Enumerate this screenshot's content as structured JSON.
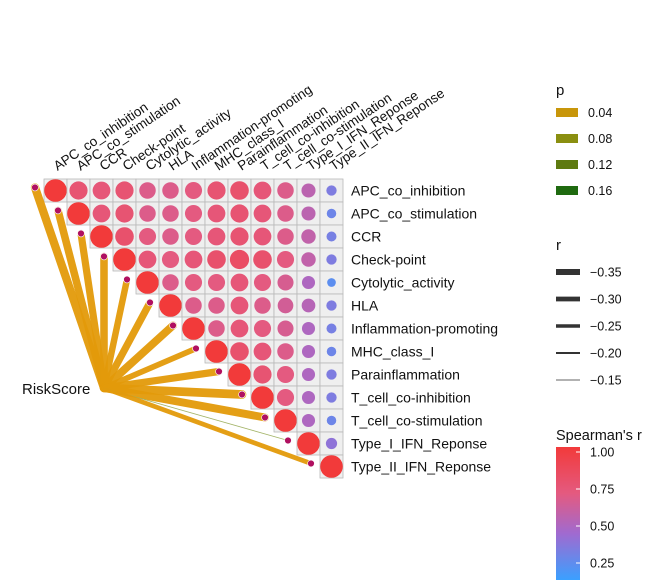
{
  "chart_data": {
    "type": "heatmap",
    "variables": [
      "APC_co_inhibition",
      "APC_co_stimulation",
      "CCR",
      "Check-point",
      "Cytolytic_activity",
      "HLA",
      "Inflammation-promoting",
      "MHC_class_I",
      "Parainflammation",
      "T_cell_co-inhibition",
      "T_cell_co-stimulation",
      "Type_I_IFN_Reponse",
      "Type_II_IFN_Reponse"
    ],
    "correlation_matrix_upper": [
      [
        1.0,
        0.8,
        0.78,
        0.8,
        0.72,
        0.72,
        0.75,
        0.8,
        0.82,
        0.78,
        0.72,
        0.6,
        0.4
      ],
      [
        1.0,
        0.78,
        0.8,
        0.72,
        0.72,
        0.75,
        0.78,
        0.8,
        0.78,
        0.72,
        0.6,
        0.35
      ],
      [
        1.0,
        0.82,
        0.75,
        0.72,
        0.75,
        0.78,
        0.8,
        0.78,
        0.72,
        0.62,
        0.38
      ],
      [
        1.0,
        0.78,
        0.75,
        0.78,
        0.82,
        0.85,
        0.82,
        0.75,
        0.62,
        0.4
      ],
      [
        1.0,
        0.72,
        0.75,
        0.75,
        0.78,
        0.75,
        0.7,
        0.55,
        0.3
      ],
      [
        1.0,
        0.72,
        0.72,
        0.78,
        0.72,
        0.68,
        0.58,
        0.4
      ],
      [
        1.0,
        0.72,
        0.78,
        0.75,
        0.7,
        0.55,
        0.38
      ],
      [
        1.0,
        0.82,
        0.78,
        0.72,
        0.55,
        0.35
      ],
      [
        1.0,
        0.8,
        0.75,
        0.55,
        0.4
      ],
      [
        1.0,
        0.75,
        0.55,
        0.4
      ],
      [
        1.0,
        0.55,
        0.35
      ],
      [
        1.0,
        0.45
      ],
      [
        1.0
      ]
    ],
    "risk_label": "RiskScore",
    "risk_links": [
      {
        "target": "APC_co_inhibition",
        "r": -0.35,
        "p": 0.01
      },
      {
        "target": "APC_co_stimulation",
        "r": -0.33,
        "p": 0.01
      },
      {
        "target": "CCR",
        "r": -0.32,
        "p": 0.01
      },
      {
        "target": "Check-point",
        "r": -0.33,
        "p": 0.01
      },
      {
        "target": "Cytolytic_activity",
        "r": -0.3,
        "p": 0.01
      },
      {
        "target": "HLA",
        "r": -0.32,
        "p": 0.01
      },
      {
        "target": "Inflammation-promoting",
        "r": -0.34,
        "p": 0.01
      },
      {
        "target": "MHC_class_I",
        "r": -0.28,
        "p": 0.01
      },
      {
        "target": "Parainflammation",
        "r": -0.32,
        "p": 0.01
      },
      {
        "target": "T_cell_co-inhibition",
        "r": -0.36,
        "p": 0.01
      },
      {
        "target": "T_cell_co-stimulation",
        "r": -0.34,
        "p": 0.01
      },
      {
        "target": "Type_I_IFN_Reponse",
        "r": -0.14,
        "p": 0.1
      },
      {
        "target": "Type_II_IFN_Reponse",
        "r": -0.25,
        "p": 0.01
      }
    ],
    "legend_p": {
      "title": "p",
      "values": [
        "0.04",
        "0.08",
        "0.12",
        "0.16"
      ],
      "colors": [
        "#c8960a",
        "#8a8f10",
        "#5e7a10",
        "#1f6a10"
      ]
    },
    "legend_r": {
      "title": "r",
      "values": [
        "−0.35",
        "−0.30",
        "−0.25",
        "−0.20",
        "−0.15"
      ]
    },
    "legend_spearman": {
      "title": "Spearman's r",
      "ticks": [
        "1.00",
        "0.75",
        "0.50",
        "0.25"
      ],
      "color_high": "#f03030",
      "color_low": "#3aa0ff"
    },
    "colors": {
      "link": "#e39a0a",
      "node_fill": "#b01060",
      "grid": "#b8b8b8",
      "tile_bg": "#efefef"
    }
  }
}
